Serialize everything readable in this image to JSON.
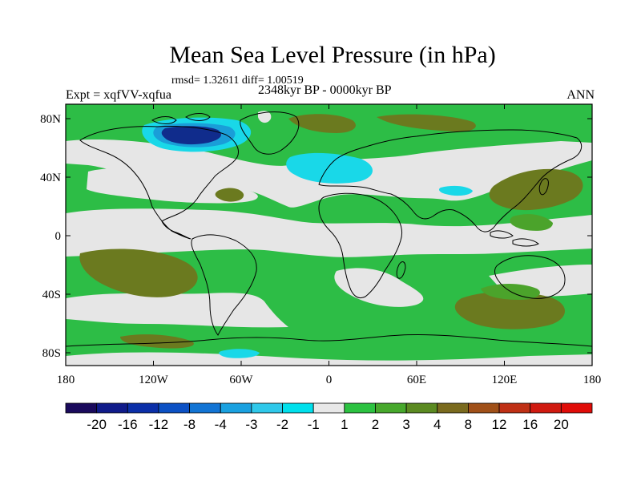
{
  "title": "Mean Sea Level Pressure (in hPa)",
  "stats": "rmsd= 1.32611 diff= 1.00519",
  "left_string": "Expt = xqfVV-xqfua",
  "center_string": "2348kyr BP - 0000kyr BP",
  "right_string": "ANN",
  "y_ticks": [
    "80N",
    "40N",
    "0",
    "40S",
    "80S"
  ],
  "x_ticks": [
    "180",
    "120W",
    "60W",
    "0",
    "60E",
    "120E",
    "180"
  ],
  "colorbar": {
    "labels": [
      "-20",
      "-16",
      "-12",
      "-8",
      "-4",
      "-3",
      "-2",
      "-1",
      "1",
      "2",
      "3",
      "4",
      "8",
      "12",
      "16",
      "20"
    ],
    "colors": [
      "#1a0a5c",
      "#101b8a",
      "#0b2fa8",
      "#0c51c4",
      "#1274d4",
      "#1aa1e0",
      "#2fc8ea",
      "#00e0ec",
      "#e8e8e8",
      "#2cc241",
      "#47a82c",
      "#5b8a21",
      "#7a6a1e",
      "#a05018",
      "#bf3015",
      "#d01a10",
      "#e00c08"
    ]
  },
  "field_colors": {
    "neutral": "#e6e6e6",
    "pos1": "#2dbd46",
    "pos2": "#4ba32b",
    "pos3": "#6b7a1f",
    "neg1": "#19d8e8",
    "neg2": "#1a9ed8",
    "neg3": "#102c8c"
  }
}
